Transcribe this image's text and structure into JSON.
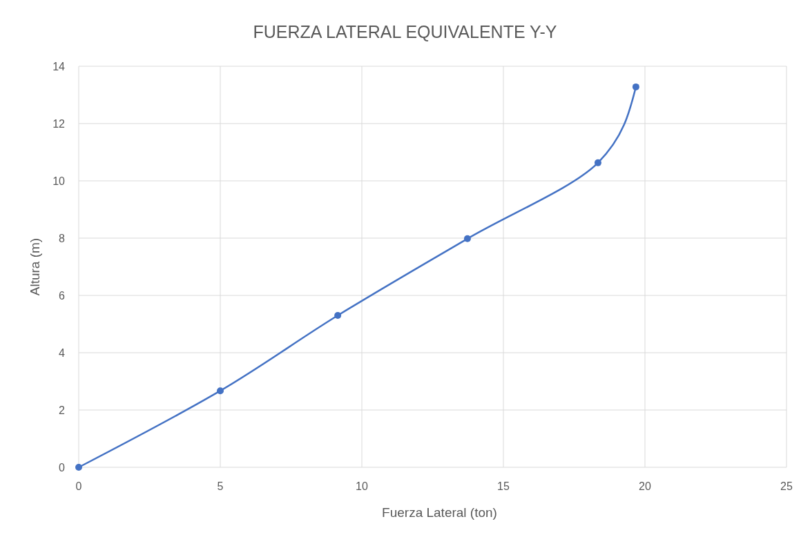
{
  "chart_data": {
    "type": "line",
    "title": "FUERZA LATERAL EQUIVALENTE Y-Y",
    "xlabel": "Fuerza Lateral (ton)",
    "ylabel": "Altura (m)",
    "x": [
      0,
      5.0,
      9.15,
      13.73,
      18.34,
      19.68
    ],
    "series": [
      {
        "color": "#4472c4",
        "values": [
          0,
          2.67,
          5.3,
          7.98,
          10.63,
          13.28
        ]
      }
    ],
    "xlim": [
      0,
      25
    ],
    "xticks": [
      0,
      5,
      10,
      15,
      20,
      25
    ],
    "ylim": [
      0,
      14
    ],
    "yticks": [
      0,
      2,
      4,
      6,
      8,
      10,
      12,
      14
    ],
    "grid": true,
    "marker": "circle",
    "line_style": "solid"
  }
}
